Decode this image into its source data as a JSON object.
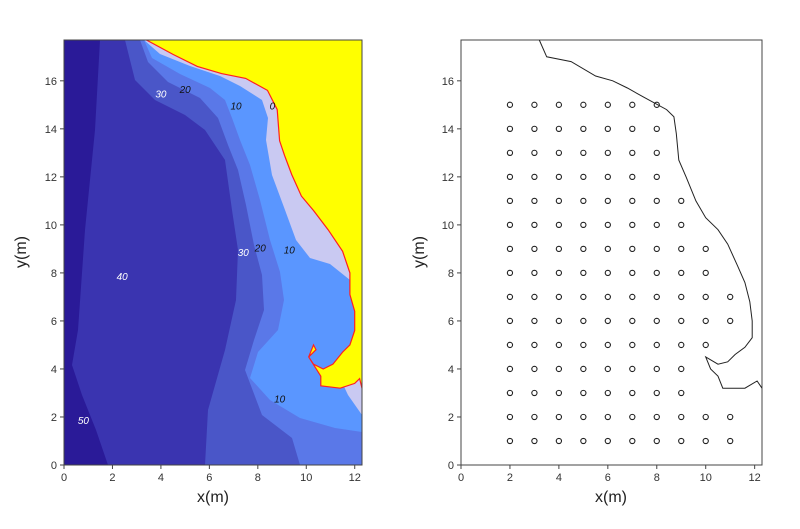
{
  "chart_data": [
    {
      "type": "heatmap",
      "title": "",
      "xlabel": "x(m)",
      "ylabel": "y(m)",
      "xlim": [
        0,
        12.3
      ],
      "ylim": [
        0,
        17.7
      ],
      "xticks": [
        "0",
        "2",
        "4",
        "6",
        "8",
        "10",
        "12"
      ],
      "yticks": [
        "0",
        "2",
        "4",
        "6",
        "8",
        "10",
        "12",
        "14",
        "16"
      ],
      "grid": false,
      "legend": "none",
      "colors": {
        "land": "#ffff00",
        "shoreline": "#ff2020",
        "band_0_10": "#c9c9f2",
        "band_10_20": "#5a96ff",
        "band_20_30": "#5a78e8",
        "band_30_40": "#4a56c8",
        "band_40_50": "#3a34b0",
        "band_50_plus": "#2a1a98"
      },
      "contour_labels": [
        {
          "text": "0",
          "x": 8.6,
          "y": 14.8
        },
        {
          "text": "10",
          "x": 7.1,
          "y": 14.8
        },
        {
          "text": "20",
          "x": 5.0,
          "y": 15.5
        },
        {
          "text": "30",
          "x": 4.0,
          "y": 15.3
        },
        {
          "text": "10",
          "x": 9.3,
          "y": 8.8
        },
        {
          "text": "20",
          "x": 8.1,
          "y": 8.9
        },
        {
          "text": "30",
          "x": 7.4,
          "y": 8.7
        },
        {
          "text": "40",
          "x": 2.4,
          "y": 7.7
        },
        {
          "text": "10",
          "x": 8.9,
          "y": 2.6
        },
        {
          "text": "50",
          "x": 0.8,
          "y": 1.7
        }
      ],
      "shoreline": [
        [
          3.4,
          17.7
        ],
        [
          4.5,
          17.1
        ],
        [
          5.5,
          16.6
        ],
        [
          6.5,
          16.3
        ],
        [
          7.5,
          16.1
        ],
        [
          8.4,
          15.6
        ],
        [
          8.8,
          14.8
        ],
        [
          8.9,
          13.5
        ],
        [
          9.1,
          12.9
        ],
        [
          9.4,
          12.1
        ],
        [
          9.8,
          11.2
        ],
        [
          10.3,
          10.6
        ],
        [
          10.9,
          9.8
        ],
        [
          11.5,
          8.9
        ],
        [
          11.8,
          8.0
        ],
        [
          11.8,
          7.1
        ],
        [
          12.0,
          6.4
        ],
        [
          12.0,
          5.6
        ],
        [
          11.8,
          5.0
        ],
        [
          11.5,
          4.7
        ],
        [
          11.1,
          4.2
        ],
        [
          10.7,
          4.0
        ],
        [
          10.3,
          4.2
        ],
        [
          10.1,
          4.5
        ],
        [
          10.4,
          4.8
        ],
        [
          10.3,
          5.0
        ],
        [
          10.1,
          4.5
        ],
        [
          10.6,
          3.7
        ],
        [
          10.6,
          3.3
        ],
        [
          11.4,
          3.2
        ],
        [
          12.0,
          3.4
        ],
        [
          12.2,
          3.6
        ],
        [
          12.3,
          3.2
        ]
      ]
    },
    {
      "type": "scatter",
      "title": "",
      "xlabel": "x(m)",
      "ylabel": "y(m)",
      "xlim": [
        0,
        12.3
      ],
      "ylim": [
        0,
        17.7
      ],
      "xticks": [
        "0",
        "2",
        "4",
        "6",
        "8",
        "10",
        "12"
      ],
      "yticks": [
        "0",
        "2",
        "4",
        "6",
        "8",
        "10",
        "12",
        "14",
        "16"
      ],
      "grid": false,
      "legend": "none",
      "marker": "open-circle",
      "points_by_row": [
        {
          "y": 1,
          "x": [
            2,
            3,
            4,
            5,
            6,
            7,
            8,
            9,
            10,
            11
          ]
        },
        {
          "y": 2,
          "x": [
            2,
            3,
            4,
            5,
            6,
            7,
            8,
            9,
            10,
            11
          ]
        },
        {
          "y": 3,
          "x": [
            2,
            3,
            4,
            5,
            6,
            7,
            8,
            9
          ]
        },
        {
          "y": 4,
          "x": [
            2,
            3,
            4,
            5,
            6,
            7,
            8,
            9
          ]
        },
        {
          "y": 5,
          "x": [
            2,
            3,
            4,
            5,
            6,
            7,
            8,
            9,
            10
          ]
        },
        {
          "y": 6,
          "x": [
            2,
            3,
            4,
            5,
            6,
            7,
            8,
            9,
            10,
            11
          ]
        },
        {
          "y": 7,
          "x": [
            2,
            3,
            4,
            5,
            6,
            7,
            8,
            9,
            10,
            11
          ]
        },
        {
          "y": 8,
          "x": [
            2,
            3,
            4,
            5,
            6,
            7,
            8,
            9,
            10
          ]
        },
        {
          "y": 9,
          "x": [
            2,
            3,
            4,
            5,
            6,
            7,
            8,
            9,
            10
          ]
        },
        {
          "y": 10,
          "x": [
            2,
            3,
            4,
            5,
            6,
            7,
            8,
            9
          ]
        },
        {
          "y": 11,
          "x": [
            2,
            3,
            4,
            5,
            6,
            7,
            8,
            9
          ]
        },
        {
          "y": 12,
          "x": [
            2,
            3,
            4,
            5,
            6,
            7,
            8
          ]
        },
        {
          "y": 13,
          "x": [
            2,
            3,
            4,
            5,
            6,
            7,
            8
          ]
        },
        {
          "y": 14,
          "x": [
            2,
            3,
            4,
            5,
            6,
            7,
            8
          ]
        },
        {
          "y": 15,
          "x": [
            2,
            3,
            4,
            5,
            6,
            7,
            8
          ]
        }
      ],
      "shoreline": [
        [
          3.2,
          17.7
        ],
        [
          3.5,
          17.0
        ],
        [
          4.5,
          16.8
        ],
        [
          5.5,
          16.2
        ],
        [
          6.2,
          16.0
        ],
        [
          6.8,
          15.7
        ],
        [
          7.5,
          15.3
        ],
        [
          8.4,
          14.8
        ],
        [
          8.7,
          14.5
        ],
        [
          8.8,
          13.8
        ],
        [
          8.9,
          12.7
        ],
        [
          9.2,
          12.0
        ],
        [
          9.6,
          11.0
        ],
        [
          10.0,
          10.3
        ],
        [
          10.5,
          9.8
        ],
        [
          10.9,
          9.2
        ],
        [
          11.3,
          8.3
        ],
        [
          11.6,
          7.6
        ],
        [
          11.8,
          6.8
        ],
        [
          11.9,
          6.0
        ],
        [
          11.9,
          5.3
        ],
        [
          11.6,
          4.9
        ],
        [
          11.2,
          4.6
        ],
        [
          10.9,
          4.3
        ],
        [
          10.5,
          4.2
        ],
        [
          10.0,
          4.5
        ],
        [
          10.2,
          4.0
        ],
        [
          10.5,
          3.7
        ],
        [
          10.7,
          3.2
        ],
        [
          11.6,
          3.2
        ],
        [
          12.1,
          3.5
        ],
        [
          12.3,
          3.2
        ]
      ]
    }
  ]
}
